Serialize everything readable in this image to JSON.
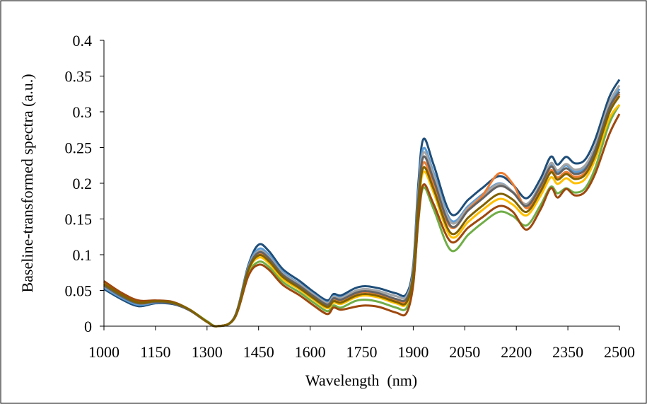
{
  "chart_data": {
    "type": "line",
    "title": "",
    "xlabel": "Wavelength  (nm)",
    "ylabel": "Baseline-transformed spectra (a.u.)",
    "xlim": [
      1000,
      2500
    ],
    "ylim": [
      0,
      0.4
    ],
    "x_ticks": [
      "1000",
      "1150",
      "1300",
      "1450",
      "1600",
      "1750",
      "1900",
      "2050",
      "2200",
      "2350",
      "2500"
    ],
    "y_ticks": [
      "0",
      "0.05",
      "0.1",
      "0.15",
      "0.2",
      "0.25",
      "0.3",
      "0.35",
      "0.4"
    ],
    "grid": false,
    "legend": "none",
    "x": [
      1000,
      1050,
      1100,
      1150,
      1200,
      1250,
      1300,
      1330,
      1380,
      1420,
      1450,
      1480,
      1520,
      1570,
      1610,
      1650,
      1668,
      1690,
      1730,
      1760,
      1800,
      1850,
      1880,
      1900,
      1915,
      1930,
      1960,
      2010,
      2060,
      2100,
      2150,
      2190,
      2230,
      2270,
      2300,
      2320,
      2345,
      2370,
      2400,
      2430,
      2470,
      2500
    ],
    "series": [
      {
        "color": "#1f4e79",
        "values": [
          0.052,
          0.038,
          0.028,
          0.032,
          0.031,
          0.022,
          0.006,
          0.0,
          0.013,
          0.085,
          0.114,
          0.105,
          0.08,
          0.063,
          0.048,
          0.036,
          0.045,
          0.043,
          0.053,
          0.056,
          0.053,
          0.046,
          0.045,
          0.085,
          0.2,
          0.262,
          0.225,
          0.157,
          0.177,
          0.193,
          0.21,
          0.198,
          0.179,
          0.206,
          0.237,
          0.226,
          0.237,
          0.228,
          0.233,
          0.262,
          0.32,
          0.345
        ]
      },
      {
        "color": "#5b9bd5",
        "values": [
          0.054,
          0.04,
          0.03,
          0.033,
          0.032,
          0.022,
          0.006,
          0.0,
          0.012,
          0.083,
          0.108,
          0.1,
          0.076,
          0.059,
          0.045,
          0.033,
          0.042,
          0.04,
          0.049,
          0.052,
          0.049,
          0.042,
          0.042,
          0.08,
          0.19,
          0.249,
          0.214,
          0.148,
          0.168,
          0.184,
          0.2,
          0.188,
          0.17,
          0.197,
          0.226,
          0.216,
          0.225,
          0.216,
          0.222,
          0.25,
          0.308,
          0.332
        ]
      },
      {
        "color": "#a5a5a5",
        "values": [
          0.056,
          0.042,
          0.032,
          0.034,
          0.033,
          0.023,
          0.006,
          0.0,
          0.012,
          0.081,
          0.105,
          0.097,
          0.074,
          0.058,
          0.044,
          0.032,
          0.041,
          0.039,
          0.049,
          0.052,
          0.049,
          0.042,
          0.041,
          0.078,
          0.184,
          0.243,
          0.21,
          0.145,
          0.166,
          0.182,
          0.199,
          0.188,
          0.171,
          0.199,
          0.228,
          0.218,
          0.227,
          0.219,
          0.225,
          0.253,
          0.312,
          0.337
        ]
      },
      {
        "color": "#70ad47",
        "values": [
          0.062,
          0.046,
          0.035,
          0.035,
          0.033,
          0.023,
          0.007,
          0.0,
          0.011,
          0.072,
          0.09,
          0.083,
          0.062,
          0.047,
          0.033,
          0.021,
          0.029,
          0.026,
          0.035,
          0.037,
          0.034,
          0.026,
          0.025,
          0.06,
          0.147,
          0.194,
          0.163,
          0.106,
          0.128,
          0.144,
          0.16,
          0.154,
          0.141,
          0.169,
          0.195,
          0.186,
          0.193,
          0.187,
          0.193,
          0.222,
          0.283,
          0.31
        ]
      },
      {
        "color": "#ffc000",
        "values": [
          0.06,
          0.045,
          0.034,
          0.035,
          0.033,
          0.023,
          0.006,
          0.0,
          0.012,
          0.077,
          0.096,
          0.088,
          0.066,
          0.051,
          0.037,
          0.025,
          0.033,
          0.031,
          0.04,
          0.043,
          0.04,
          0.032,
          0.031,
          0.068,
          0.165,
          0.216,
          0.186,
          0.125,
          0.146,
          0.162,
          0.178,
          0.17,
          0.155,
          0.182,
          0.208,
          0.199,
          0.207,
          0.2,
          0.206,
          0.234,
          0.29,
          0.31
        ]
      },
      {
        "color": "#9e480e",
        "values": [
          0.063,
          0.047,
          0.036,
          0.036,
          0.034,
          0.023,
          0.006,
          0.0,
          0.011,
          0.07,
          0.086,
          0.079,
          0.058,
          0.043,
          0.029,
          0.017,
          0.026,
          0.023,
          0.027,
          0.029,
          0.027,
          0.019,
          0.018,
          0.058,
          0.15,
          0.198,
          0.17,
          0.118,
          0.138,
          0.152,
          0.168,
          0.16,
          0.135,
          0.163,
          0.193,
          0.18,
          0.192,
          0.183,
          0.188,
          0.214,
          0.268,
          0.297
        ]
      },
      {
        "color": "#ed7d31",
        "values": [
          0.058,
          0.043,
          0.032,
          0.034,
          0.032,
          0.022,
          0.006,
          0.0,
          0.012,
          0.079,
          0.1,
          0.093,
          0.071,
          0.056,
          0.042,
          0.03,
          0.038,
          0.036,
          0.045,
          0.048,
          0.045,
          0.037,
          0.036,
          0.072,
          0.175,
          0.229,
          0.197,
          0.138,
          0.163,
          0.182,
          0.214,
          0.199,
          0.165,
          0.192,
          0.218,
          0.208,
          0.216,
          0.209,
          0.215,
          0.243,
          0.3,
          0.325
        ]
      },
      {
        "color": "#636363",
        "values": [
          0.057,
          0.042,
          0.032,
          0.034,
          0.032,
          0.022,
          0.006,
          0.0,
          0.012,
          0.08,
          0.103,
          0.095,
          0.072,
          0.056,
          0.042,
          0.03,
          0.039,
          0.037,
          0.046,
          0.049,
          0.046,
          0.038,
          0.038,
          0.074,
          0.18,
          0.237,
          0.204,
          0.14,
          0.162,
          0.178,
          0.196,
          0.187,
          0.168,
          0.196,
          0.223,
          0.213,
          0.221,
          0.213,
          0.219,
          0.247,
          0.305,
          0.328
        ]
      },
      {
        "color": "#7f6000",
        "values": [
          0.059,
          0.044,
          0.033,
          0.035,
          0.033,
          0.023,
          0.006,
          0.0,
          0.012,
          0.078,
          0.099,
          0.091,
          0.069,
          0.053,
          0.039,
          0.027,
          0.035,
          0.033,
          0.042,
          0.045,
          0.042,
          0.034,
          0.033,
          0.07,
          0.17,
          0.222,
          0.191,
          0.13,
          0.152,
          0.168,
          0.185,
          0.177,
          0.16,
          0.188,
          0.215,
          0.205,
          0.213,
          0.206,
          0.212,
          0.24,
          0.298,
          0.322
        ]
      }
    ]
  }
}
